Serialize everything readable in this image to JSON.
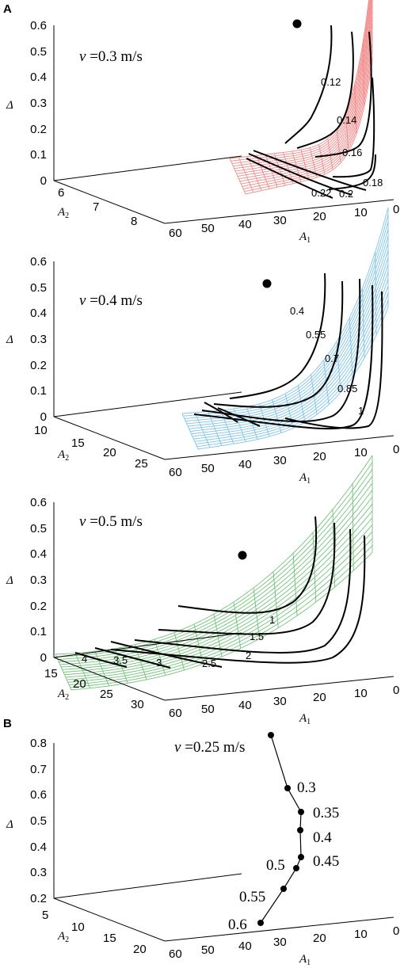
{
  "panel_labels": [
    "A",
    "B"
  ],
  "chart_data": [
    {
      "type": "surface",
      "panel": "A",
      "annotation": {
        "symbol": "v",
        "text": " =0.3 m/s"
      },
      "xlabel": "A",
      "xlabel_sub": "1",
      "ylabel": "A",
      "ylabel_sub": "2",
      "zlabel": "Δ",
      "x_ticks": [
        "60",
        "50",
        "40",
        "30",
        "20",
        "10",
        "0"
      ],
      "y_ticks": [
        "6",
        "7",
        "8"
      ],
      "z_ticks": [
        "0",
        "0.1",
        "0.2",
        "0.3",
        "0.4",
        "0.5",
        "0.6"
      ],
      "surface_color": "#f08a8a",
      "contour_labels": [
        "0.12",
        "0.14",
        "0.16",
        "0.18",
        "0.2",
        "0.22"
      ],
      "marker": {
        "A1": 26,
        "A2": 5.5,
        "Delta": 0.61
      }
    },
    {
      "type": "surface",
      "annotation": {
        "symbol": "v",
        "text": " =0.4 m/s"
      },
      "xlabel": "A",
      "xlabel_sub": "1",
      "ylabel": "A",
      "ylabel_sub": "2",
      "zlabel": "Δ",
      "x_ticks": [
        "60",
        "50",
        "40",
        "30",
        "20",
        "10",
        "0"
      ],
      "y_ticks": [
        "10",
        "15",
        "20",
        "25"
      ],
      "z_ticks": [
        "0",
        "0.1",
        "0.2",
        "0.3",
        "0.4",
        "0.5",
        "0.6"
      ],
      "surface_color": "#7fc3e8",
      "contour_labels": [
        "0.4",
        "0.55",
        "0.7",
        "0.85",
        "1"
      ],
      "marker": {
        "A1": 33,
        "A2": 8,
        "Delta": 0.53
      }
    },
    {
      "type": "surface",
      "annotation": {
        "symbol": "v",
        "text": " =0.5 m/s"
      },
      "xlabel": "A",
      "xlabel_sub": "1",
      "ylabel": "A",
      "ylabel_sub": "2",
      "zlabel": "Δ",
      "x_ticks": [
        "60",
        "50",
        "40",
        "30",
        "20",
        "10",
        "0"
      ],
      "y_ticks": [
        "15",
        "20",
        "25",
        "30"
      ],
      "z_ticks": [
        "0",
        "0.1",
        "0.2",
        "0.3",
        "0.4",
        "0.5",
        "0.6"
      ],
      "surface_color": "#72c27a",
      "contour_labels": [
        "1",
        "1.5",
        "2",
        "2.5",
        "3",
        "3.5",
        "4"
      ],
      "marker": {
        "A1": 38,
        "A2": 12,
        "Delta": 0.4
      }
    },
    {
      "type": "line",
      "panel": "B",
      "xlabel": "A",
      "xlabel_sub": "1",
      "ylabel": "A",
      "ylabel_sub": "2",
      "zlabel": "Δ",
      "x_ticks": [
        "60",
        "50",
        "40",
        "30",
        "20",
        "10",
        "0"
      ],
      "y_ticks": [
        "5",
        "10",
        "15",
        "20"
      ],
      "z_ticks": [
        "0.2",
        "0.3",
        "0.4",
        "0.5",
        "0.6",
        "0.7",
        "0.8"
      ],
      "first_label": {
        "symbol": "v",
        "text": " =0.25 m/s"
      },
      "point_labels": [
        "0.3",
        "0.35",
        "0.4",
        "0.45",
        "0.5",
        "0.55",
        "0.6"
      ]
    }
  ]
}
